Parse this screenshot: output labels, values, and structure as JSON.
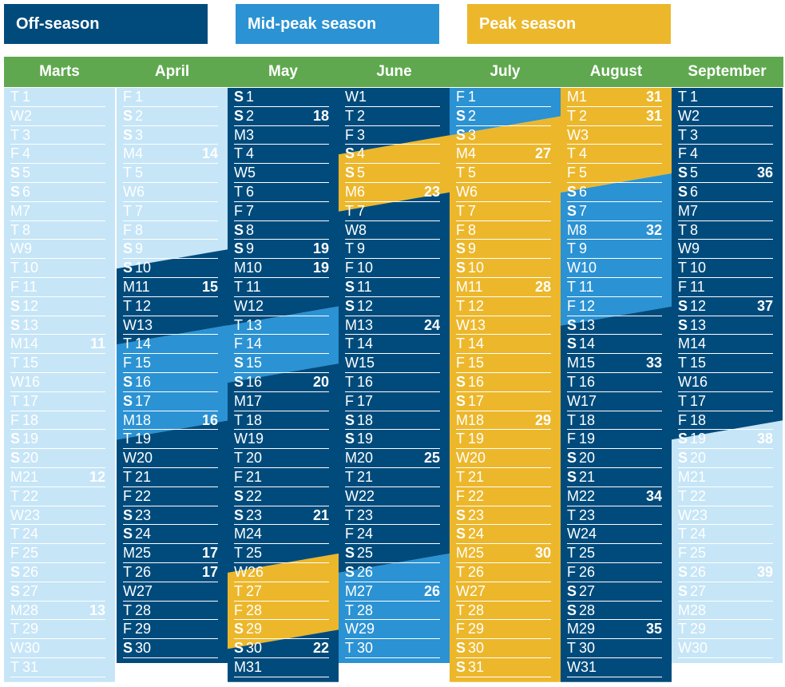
{
  "legend": [
    {
      "label": "Off-season",
      "color": "#004b7c"
    },
    {
      "label": "Mid-peak season",
      "color": "#2b92d3"
    },
    {
      "label": "Peak season",
      "color": "#ecb72b"
    }
  ],
  "colors": {
    "header_green": "#5fa84f",
    "off_season": "#004b7c",
    "mid_peak": "#2b92d3",
    "peak": "#ecb72b",
    "past": "#c6e5f7"
  },
  "months": [
    {
      "name": "Marts",
      "start": "T",
      "days": 31,
      "weeks": {
        "14": "11",
        "21": "12",
        "28": "13"
      },
      "season_runs": [
        [
          "past",
          1,
          31
        ]
      ]
    },
    {
      "name": "April",
      "start": "F",
      "days": 30,
      "weeks": {
        "4": "14",
        "11": "15",
        "18": "16",
        "25": "17",
        "26": "17"
      },
      "season_runs": [
        [
          "past",
          1,
          9
        ],
        [
          "off",
          10,
          13
        ],
        [
          "mid",
          14,
          18
        ],
        [
          "off",
          19,
          30
        ]
      ]
    },
    {
      "name": "May",
      "start": "S",
      "days": 31,
      "weeks": {
        "2": "18",
        "9": "19",
        "10": "19",
        "16": "20",
        "23": "21",
        "30": "22"
      },
      "season_runs": [
        [
          "off",
          1,
          12
        ],
        [
          "mid",
          13,
          15
        ],
        [
          "off",
          16,
          25
        ],
        [
          "peak",
          26,
          29
        ],
        [
          "off",
          30,
          31
        ]
      ]
    },
    {
      "name": "June",
      "start": "W",
      "days": 30,
      "weeks": {
        "6": "23",
        "13": "24",
        "20": "25",
        "27": "26"
      },
      "season_runs": [
        [
          "off",
          1,
          3
        ],
        [
          "peak",
          4,
          6
        ],
        [
          "off",
          7,
          25
        ],
        [
          "mid",
          26,
          30
        ]
      ]
    },
    {
      "name": "July",
      "start": "F",
      "days": 31,
      "weeks": {
        "4": "27",
        "11": "28",
        "18": "29",
        "25": "30"
      },
      "season_runs": [
        [
          "mid",
          1,
          2
        ],
        [
          "peak",
          3,
          31
        ]
      ]
    },
    {
      "name": "August",
      "start": "M",
      "days": 31,
      "weeks": {
        "1": "31",
        "2": "31",
        "8": "32",
        "15": "33",
        "22": "34",
        "29": "35"
      },
      "season_runs": [
        [
          "peak",
          1,
          5
        ],
        [
          "mid",
          6,
          12
        ],
        [
          "off",
          13,
          31
        ]
      ]
    },
    {
      "name": "September",
      "start": "T",
      "days": 30,
      "weeks": {
        "5": "36",
        "12": "37",
        "19": "38",
        "26": "39"
      },
      "season_runs": [
        [
          "off",
          1,
          18
        ],
        [
          "past",
          19,
          30
        ]
      ]
    }
  ]
}
